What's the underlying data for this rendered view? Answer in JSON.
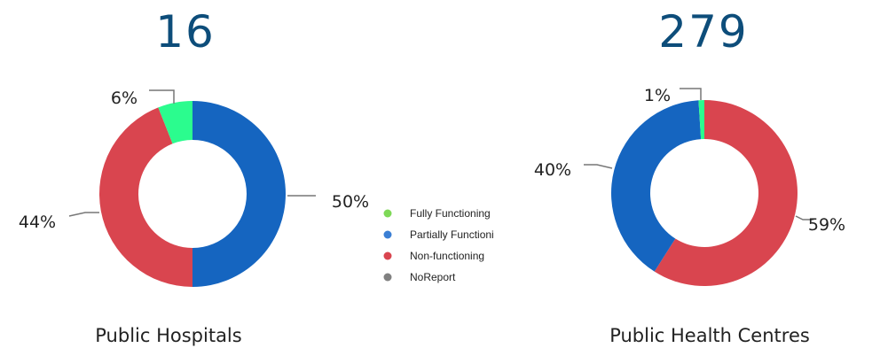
{
  "legend": {
    "items": [
      {
        "label": "Fully Functioning",
        "color": "#7ed957"
      },
      {
        "label": "Partially Functioni",
        "color": "#3b7fd4"
      },
      {
        "label": "Non-functioning",
        "color": "#d9454f"
      },
      {
        "label": "NoReport",
        "color": "#808080"
      }
    ]
  },
  "chart_data": [
    {
      "type": "pie",
      "variant": "donut",
      "total": "16",
      "caption": "Public Hospitals",
      "slices": [
        {
          "name": "Partially Functioning",
          "value": 50,
          "label": "50%",
          "color": "#1565c0"
        },
        {
          "name": "Non-functioning",
          "value": 44,
          "label": "44%",
          "color": "#d9454f"
        },
        {
          "name": "Fully Functioning",
          "value": 6,
          "label": "6%",
          "color": "#2bfc8e"
        }
      ]
    },
    {
      "type": "pie",
      "variant": "donut",
      "total": "279",
      "caption": "Public Health Centres",
      "slices": [
        {
          "name": "Non-functioning",
          "value": 59,
          "label": "59%",
          "color": "#d9454f"
        },
        {
          "name": "Partially Functioning",
          "value": 40,
          "label": "40%",
          "color": "#1565c0"
        },
        {
          "name": "Fully Functioning",
          "value": 1,
          "label": "1%",
          "color": "#2bfc8e"
        }
      ]
    }
  ]
}
